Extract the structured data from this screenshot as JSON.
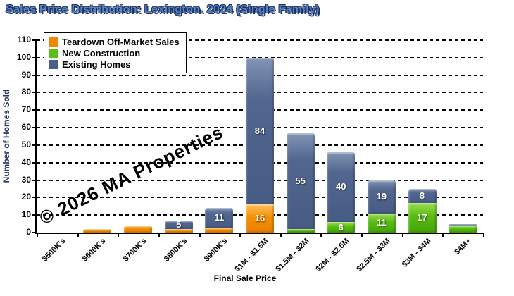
{
  "page": {
    "title": "Sales Price Distribution: Lexington. 2024 (Single Family)"
  },
  "watermark": "© 2026 MA Properties",
  "chart_data": {
    "type": "bar",
    "variant": "stacked-vertical",
    "title": "Sales Price Distribution: Lexington. 2024 (Single Family)",
    "xlabel": "Final Sale Price",
    "ylabel": "Number of Homes Sold",
    "ylim": [
      0,
      110
    ],
    "ytick_step": 10,
    "grid": "horizontal dashed black",
    "legend_position": "top-left inside plot",
    "categories": [
      "$500K's",
      "$600K's",
      "$700K's",
      "$800K's",
      "$900K's",
      "$1M - $1.5M",
      "$1.5M - $2M",
      "$2M - $2.5M",
      "$2.5M - $3M",
      "$3M - $4M",
      "$4M+"
    ],
    "series": [
      {
        "name": "Teardown Off-Market Sales",
        "color": "#F28705",
        "css_class": "seg-orange",
        "values": [
          0,
          2,
          4,
          2,
          3,
          16,
          0,
          0,
          0,
          0,
          0
        ]
      },
      {
        "name": "New Construction",
        "color": "#5ABE14",
        "css_class": "seg-green",
        "values": [
          0,
          0,
          0,
          0,
          0,
          0,
          2,
          6,
          11,
          17,
          4
        ]
      },
      {
        "name": "Existing Homes",
        "color": "#4A5E87",
        "css_class": "seg-blue",
        "values": [
          0,
          0,
          0,
          5,
          11,
          84,
          55,
          40,
          19,
          8,
          1
        ]
      }
    ],
    "stack_order_bottom_to_top": [
      "Teardown Off-Market Sales",
      "New Construction",
      "Existing Homes"
    ],
    "category_totals": [
      0,
      2,
      4,
      7,
      14,
      100,
      57,
      46,
      30,
      25,
      5
    ],
    "data_label_min_value": 5,
    "data_label_color": "#FFFFFF"
  }
}
